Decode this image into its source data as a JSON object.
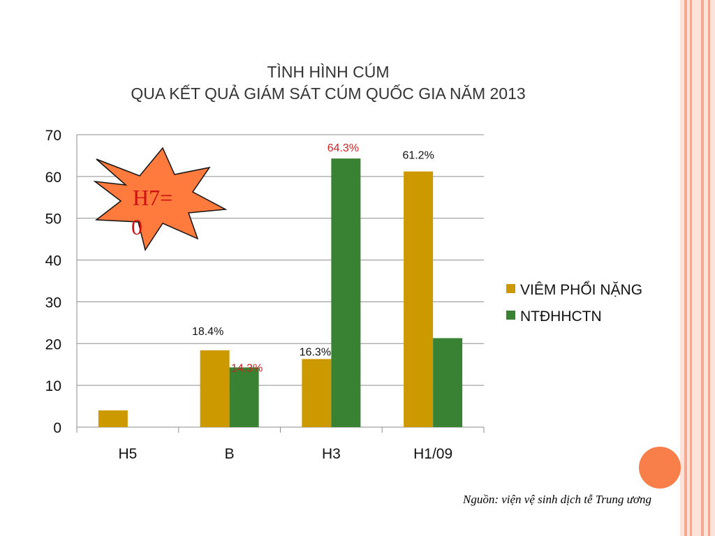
{
  "colors": {
    "series1": "#cc9900",
    "series2": "#3a8233",
    "label_red": "#cc2222",
    "label_black": "#111111",
    "star_fill": "#ff7a3d",
    "star_text": "#cc1111",
    "stripe": "#f4a893",
    "circle": "#f87f4a"
  },
  "chart_data": {
    "type": "bar",
    "title_line1": "TÌNH HÌNH CÚM",
    "title_line2": "QUA KẾT QUẢ GIÁM SÁT CÚM QUỐC GIA NĂM 2013",
    "categories": [
      "H5",
      "B",
      "H3",
      "H1/09"
    ],
    "series": [
      {
        "name": "VIÊM PHỔI NẶNG",
        "values": [
          4,
          18.4,
          16.3,
          61.2
        ]
      },
      {
        "name": "NTĐHHCTN",
        "values": [
          0,
          14.3,
          64.3,
          21.3
        ]
      }
    ],
    "ylim": [
      0,
      70
    ],
    "yticks": [
      0,
      10,
      20,
      30,
      40,
      50,
      60,
      70
    ],
    "grid": true,
    "legend": "right",
    "data_labels": [
      {
        "category": "B",
        "series": "VIÊM PHỔI NẶNG",
        "text": "18.4%",
        "color": "black"
      },
      {
        "category": "B",
        "series": "NTĐHHCTN",
        "text": "14.3%",
        "color": "red"
      },
      {
        "category": "H3",
        "series": "VIÊM PHỔI NẶNG",
        "text": "16.3%",
        "color": "black"
      },
      {
        "category": "H3",
        "series": "NTĐHHCTN",
        "text": "64.3%",
        "color": "red"
      },
      {
        "category": "H1/09",
        "series": "VIÊM PHỔI NẶNG",
        "text": "61.2%",
        "color": "black"
      }
    ],
    "annotation": {
      "text_line1": "H7=",
      "text_line2": "0",
      "shape": "starburst"
    }
  },
  "source_note": "Nguồn: viện vệ sinh dịch tễ Trung ương"
}
